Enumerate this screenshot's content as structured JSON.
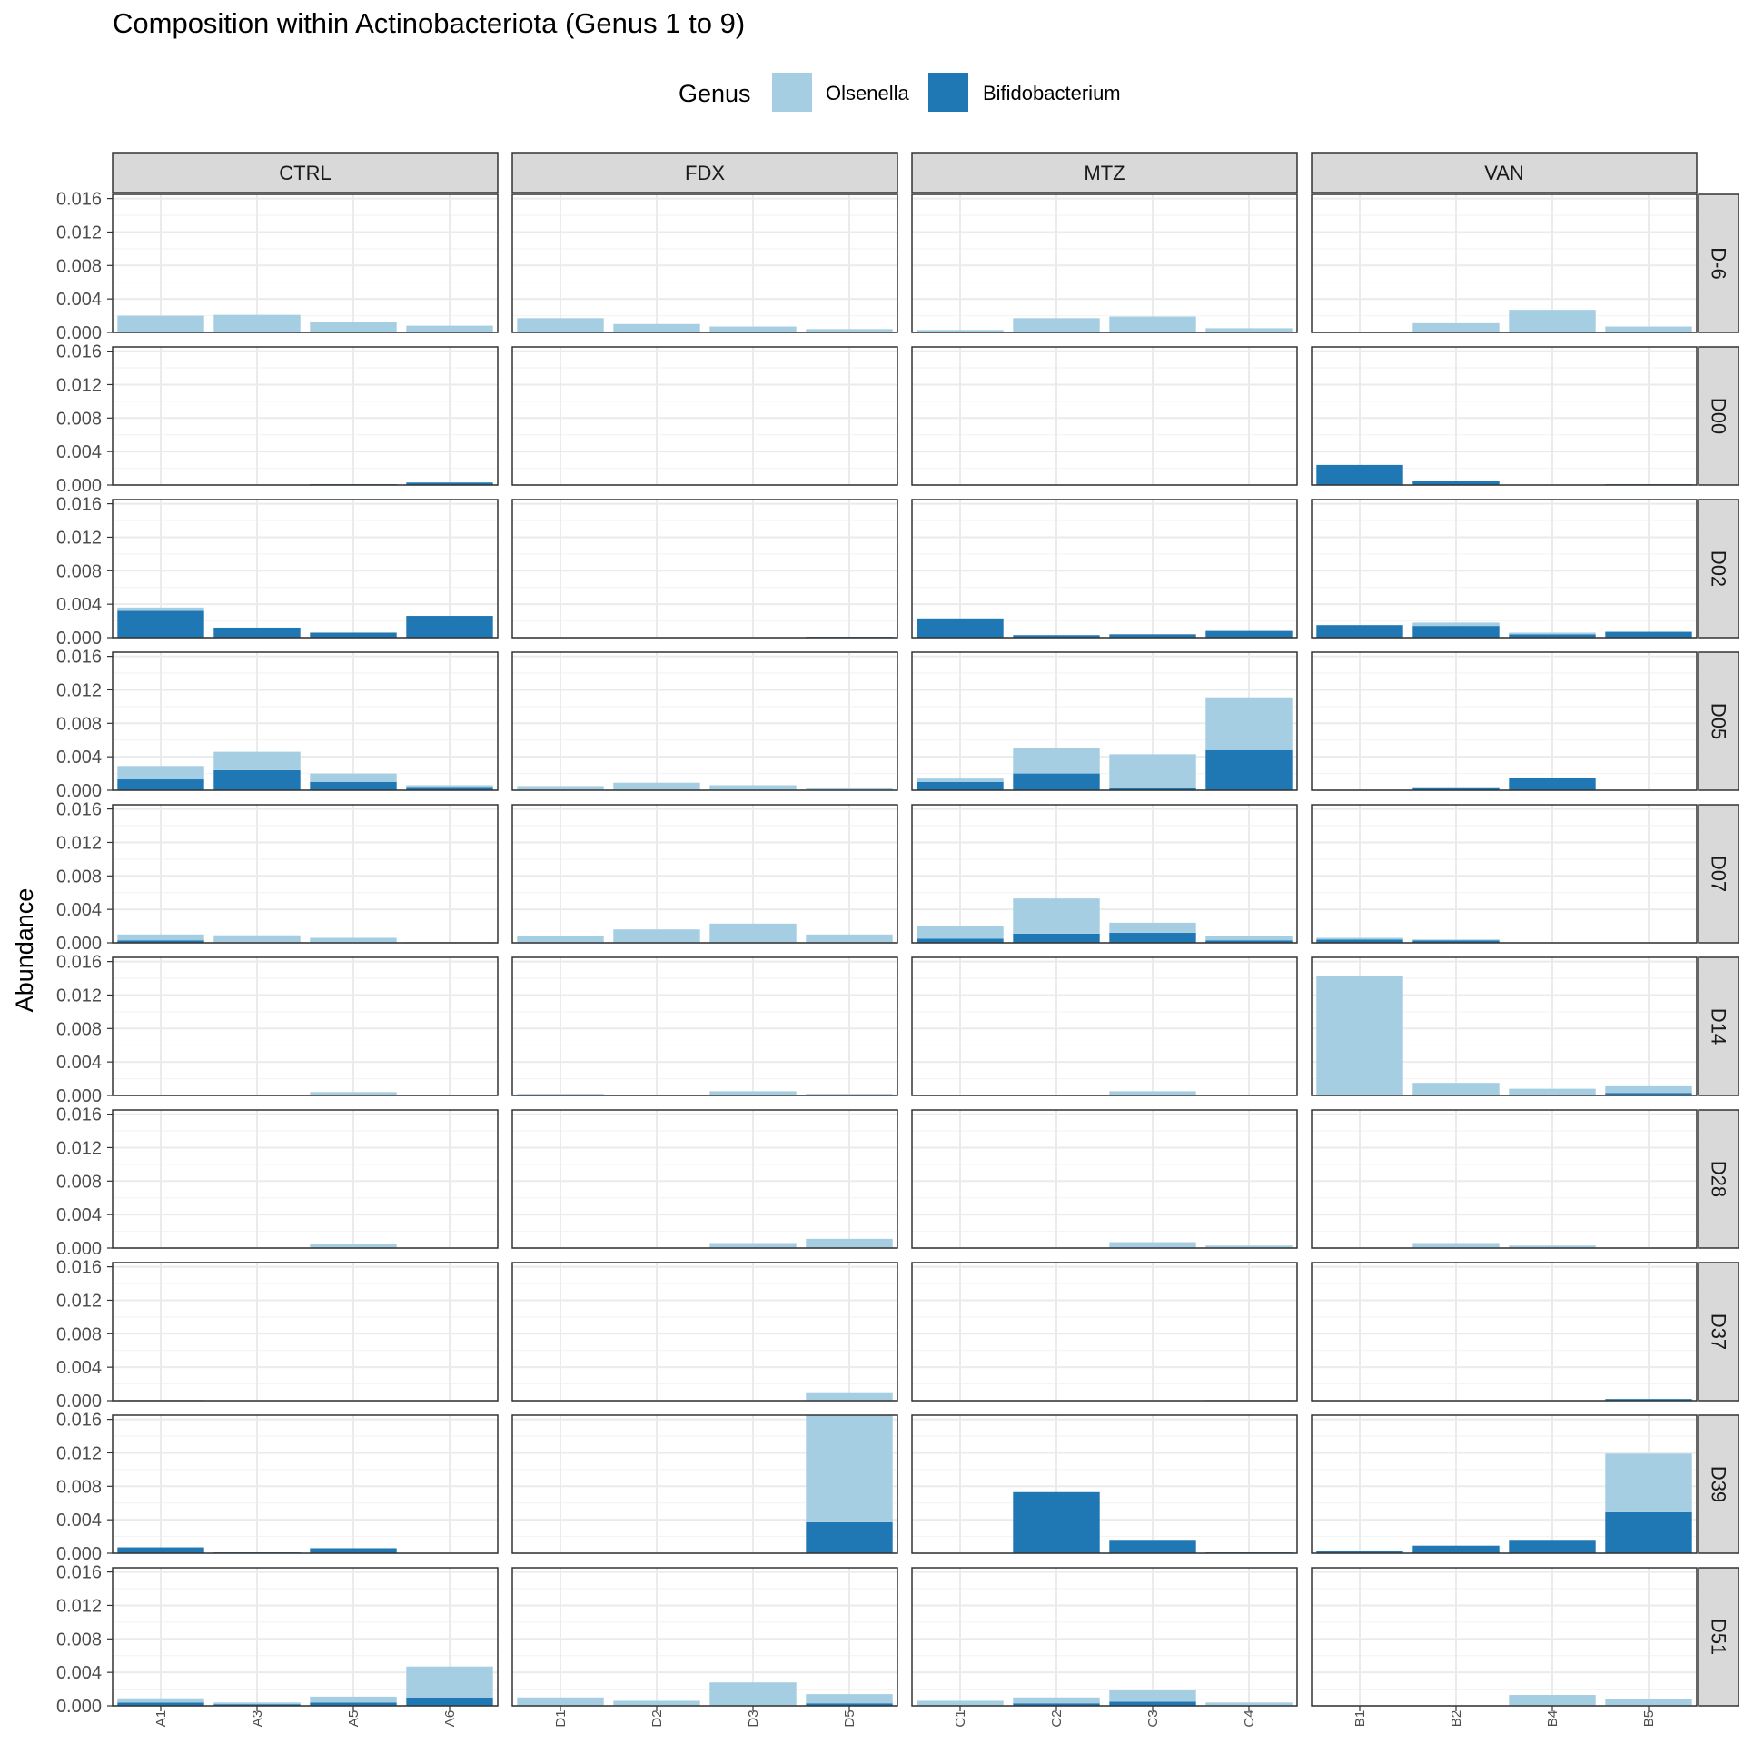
{
  "chart_data": {
    "type": "bar",
    "stacked": true,
    "title": "Composition within Actinobacteriota (Genus 1 to 9)",
    "ylabel": "Abundance",
    "xlabel": "",
    "legend": {
      "title": "Genus",
      "position": "top",
      "entries": [
        {
          "name": "Olsenella",
          "color": "#a6cee3"
        },
        {
          "name": "Bifidobacterium",
          "color": "#1f78b4"
        }
      ]
    },
    "ylim": [
      0,
      0.0165
    ],
    "yticks": [
      "0.000",
      "0.004",
      "0.008",
      "0.012",
      "0.016"
    ],
    "ytick_values": [
      0,
      0.004,
      0.008,
      0.012,
      0.016
    ],
    "grid": true,
    "facet_cols": [
      {
        "label": "CTRL",
        "samples": [
          "A1",
          "A3",
          "A5",
          "A6"
        ]
      },
      {
        "label": "FDX",
        "samples": [
          "D1",
          "D2",
          "D3",
          "D5"
        ]
      },
      {
        "label": "MTZ",
        "samples": [
          "C1",
          "C2",
          "C3",
          "C4"
        ]
      },
      {
        "label": "VAN",
        "samples": [
          "B1",
          "B2",
          "B4",
          "B5"
        ]
      }
    ],
    "facet_rows": [
      {
        "label": "D-6",
        "bifido": [
          [
            0,
            0,
            0,
            0
          ],
          [
            0,
            0,
            0,
            0
          ],
          [
            0,
            0,
            0,
            0
          ],
          [
            0,
            0,
            0,
            0
          ]
        ],
        "olsenella": [
          [
            0.002,
            0.0021,
            0.0013,
            0.0008
          ],
          [
            0.0017,
            0.001,
            0.0007,
            0.0004
          ],
          [
            0.0003,
            0.0017,
            0.0019,
            0.0005
          ],
          [
            0,
            0.0011,
            0.0027,
            0.0007
          ]
        ]
      },
      {
        "label": "D00",
        "bifido": [
          [
            0,
            0,
            0.0001,
            0.0003
          ],
          [
            0,
            0,
            0,
            0
          ],
          [
            0,
            0,
            0,
            0
          ],
          [
            0.0024,
            0.0005,
            0,
            0.0001
          ]
        ],
        "olsenella": [
          [
            0,
            0,
            0,
            0
          ],
          [
            0,
            0,
            0,
            0
          ],
          [
            0,
            0,
            0,
            0
          ],
          [
            0,
            0,
            0,
            0
          ]
        ]
      },
      {
        "label": "D02",
        "bifido": [
          [
            0.0032,
            0.0012,
            0.0006,
            0.0026
          ],
          [
            0,
            0,
            0,
            0.0001
          ],
          [
            0.0023,
            0.0003,
            0.0004,
            0.0008
          ],
          [
            0.0015,
            0.0014,
            0.0004,
            0.0007
          ]
        ],
        "olsenella": [
          [
            0.0004,
            0,
            0,
            0
          ],
          [
            0,
            0,
            0,
            0
          ],
          [
            0,
            0,
            0,
            0
          ],
          [
            0,
            0.0004,
            0.0002,
            0
          ]
        ]
      },
      {
        "label": "D05",
        "bifido": [
          [
            0.0013,
            0.0024,
            0.001,
            0.0004
          ],
          [
            0,
            0,
            0,
            0
          ],
          [
            0.001,
            0.002,
            0.0003,
            0.0048
          ],
          [
            0,
            0.0003,
            0.0015,
            0
          ]
        ],
        "olsenella": [
          [
            0.0016,
            0.0022,
            0.001,
            0.0002
          ],
          [
            0.0005,
            0.0009,
            0.0006,
            0.0003
          ],
          [
            0.0004,
            0.0031,
            0.004,
            0.0063
          ],
          [
            0,
            0.0001,
            0,
            0
          ]
        ]
      },
      {
        "label": "D07",
        "bifido": [
          [
            0.0003,
            0,
            0,
            0
          ],
          [
            0,
            0,
            0,
            0
          ],
          [
            0.0005,
            0.0011,
            0.0012,
            0.0003
          ],
          [
            0.0004,
            0.0003,
            0,
            0
          ]
        ],
        "olsenella": [
          [
            0.0007,
            0.0009,
            0.0006,
            0.0001
          ],
          [
            0.0008,
            0.0016,
            0.0023,
            0.001
          ],
          [
            0.0015,
            0.0042,
            0.0012,
            0.0005
          ],
          [
            0.0002,
            0.0001,
            0,
            0
          ]
        ]
      },
      {
        "label": "D14",
        "bifido": [
          [
            0,
            0,
            0,
            0
          ],
          [
            0,
            0,
            0,
            0
          ],
          [
            0,
            0,
            0,
            0
          ],
          [
            0,
            0,
            0,
            0.0003
          ]
        ],
        "olsenella": [
          [
            0,
            0,
            0.0004,
            0
          ],
          [
            0.0002,
            0,
            0.0005,
            0.0002
          ],
          [
            0,
            0,
            0.0005,
            0
          ],
          [
            0.0143,
            0.0015,
            0.0008,
            0.0008
          ]
        ]
      },
      {
        "label": "D28",
        "bifido": [
          [
            0,
            0,
            0,
            0
          ],
          [
            0,
            0,
            0,
            0
          ],
          [
            0,
            0,
            0,
            0
          ],
          [
            0,
            0,
            0,
            0
          ]
        ],
        "olsenella": [
          [
            0,
            0,
            0.0005,
            0
          ],
          [
            0,
            0,
            0.0006,
            0.0011
          ],
          [
            0,
            0,
            0.0007,
            0.0003
          ],
          [
            0,
            0.0006,
            0.0003,
            0
          ]
        ]
      },
      {
        "label": "D37",
        "bifido": [
          [
            0,
            0,
            0,
            0
          ],
          [
            0,
            0,
            0,
            0
          ],
          [
            0,
            0,
            0,
            0
          ],
          [
            0,
            0,
            0,
            0.0002
          ]
        ],
        "olsenella": [
          [
            0.0001,
            0,
            0,
            0
          ],
          [
            0,
            0,
            0,
            0.0009
          ],
          [
            0,
            0,
            0,
            0.0001
          ],
          [
            0,
            0,
            0,
            0
          ]
        ]
      },
      {
        "label": "D39",
        "bifido": [
          [
            0.0007,
            0.0001,
            0.0006,
            0
          ],
          [
            0,
            0,
            0,
            0.0037
          ],
          [
            0,
            0.0073,
            0.0016,
            0.0001
          ],
          [
            0.0003,
            0.0009,
            0.0016,
            0.0049
          ]
        ],
        "olsenella": [
          [
            0,
            0,
            0,
            0
          ],
          [
            0,
            0,
            0,
            0.0128
          ],
          [
            0,
            0,
            0,
            0
          ],
          [
            0,
            0,
            0,
            0.007
          ]
        ]
      },
      {
        "label": "D51",
        "bifido": [
          [
            0.0004,
            0.0002,
            0.0004,
            0.001
          ],
          [
            0,
            0,
            0,
            0.0003
          ],
          [
            0,
            0.0003,
            0.0005,
            0
          ],
          [
            0,
            0,
            0,
            0
          ]
        ],
        "olsenella": [
          [
            0.0005,
            0.0002,
            0.0007,
            0.0037
          ],
          [
            0.001,
            0.0006,
            0.0028,
            0.0011
          ],
          [
            0.0006,
            0.0007,
            0.0014,
            0.0004
          ],
          [
            0,
            0,
            0.0013,
            0.0008
          ]
        ]
      }
    ]
  }
}
